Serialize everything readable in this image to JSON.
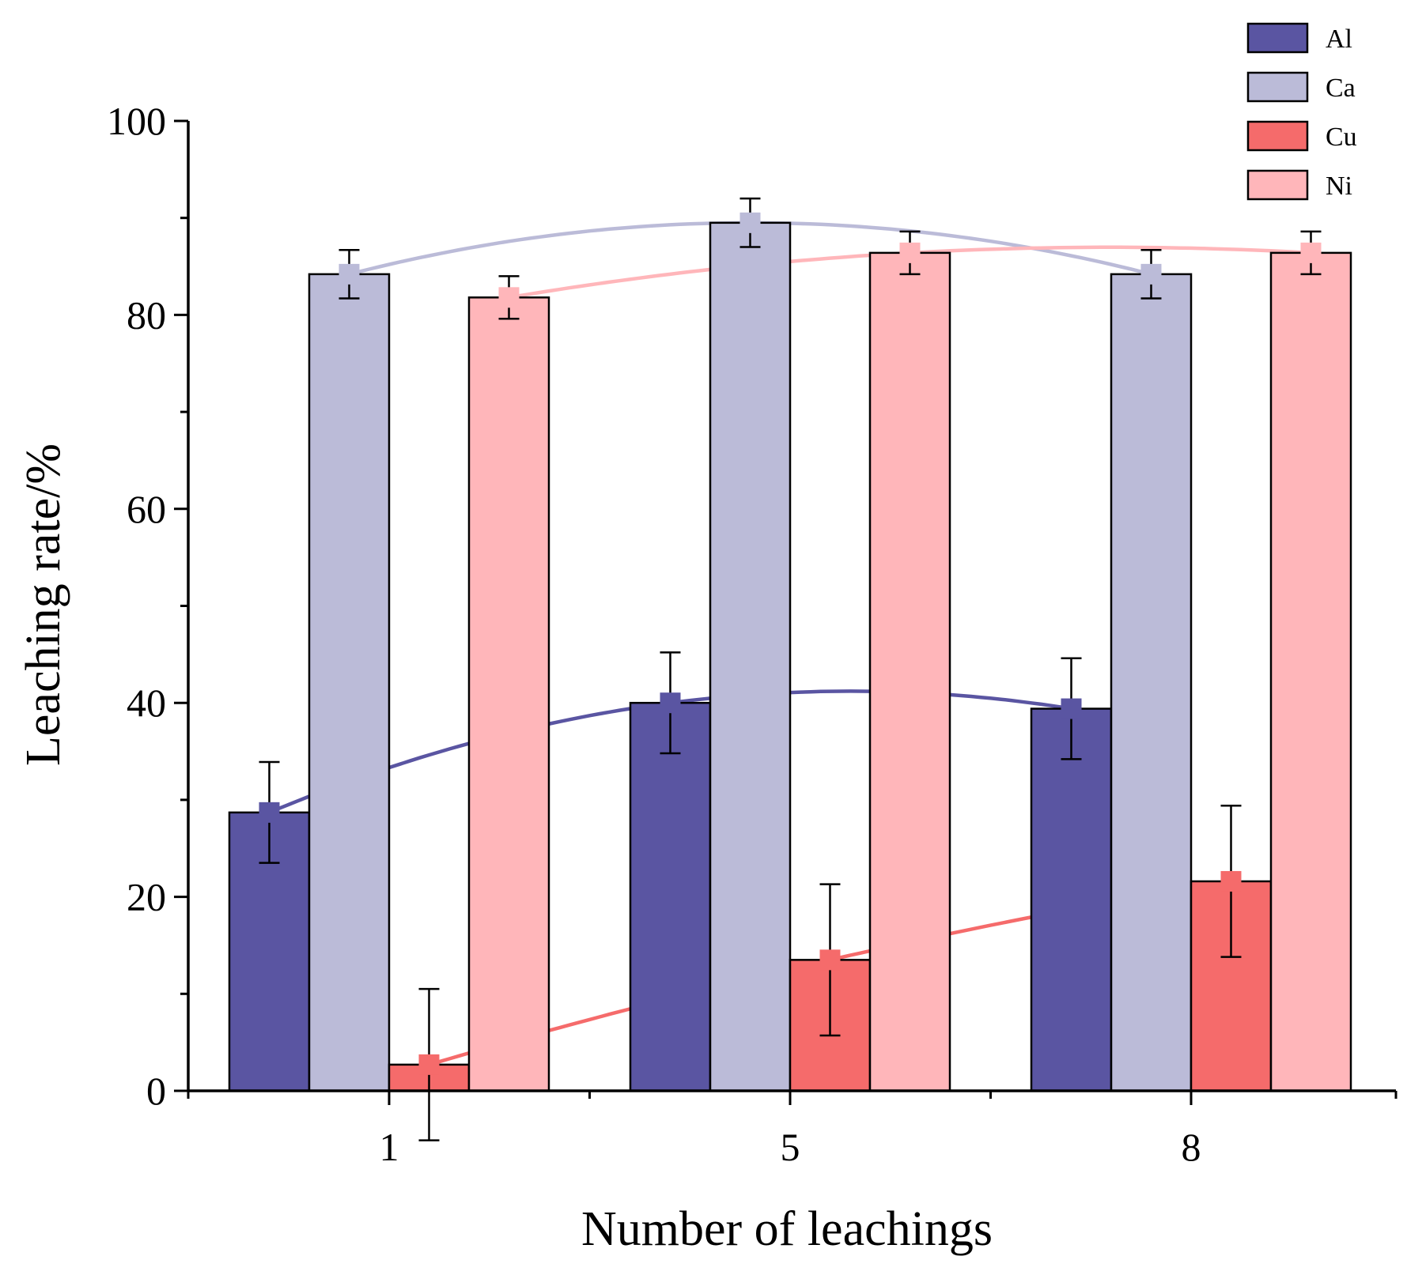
{
  "chart_data": {
    "type": "bar",
    "title": "",
    "xlabel": "Number of leachings",
    "ylabel": "Leaching rate/%",
    "categories": [
      "1",
      "5",
      "8"
    ],
    "ylim": [
      0,
      100
    ],
    "yticks": [
      0,
      20,
      40,
      60,
      80,
      100
    ],
    "series": [
      {
        "name": "Al",
        "color": "#5A55A2",
        "values": [
          28.7,
          40.0,
          39.4
        ],
        "errors": [
          5.2,
          5.2,
          5.2
        ]
      },
      {
        "name": "Ca",
        "color": "#BBBBD8",
        "values": [
          84.2,
          89.5,
          84.2
        ],
        "errors": [
          2.5,
          2.5,
          2.5
        ]
      },
      {
        "name": "Cu",
        "color": "#F56B6B",
        "values": [
          2.7,
          13.5,
          21.6
        ],
        "errors": [
          7.8,
          7.8,
          7.8
        ]
      },
      {
        "name": "Ni",
        "color": "#FFB6BA",
        "values": [
          81.8,
          86.4,
          86.4
        ],
        "errors": [
          2.2,
          2.2,
          2.2
        ]
      }
    ],
    "grid": false,
    "legend_position": "top-right",
    "trend_lines": true
  }
}
